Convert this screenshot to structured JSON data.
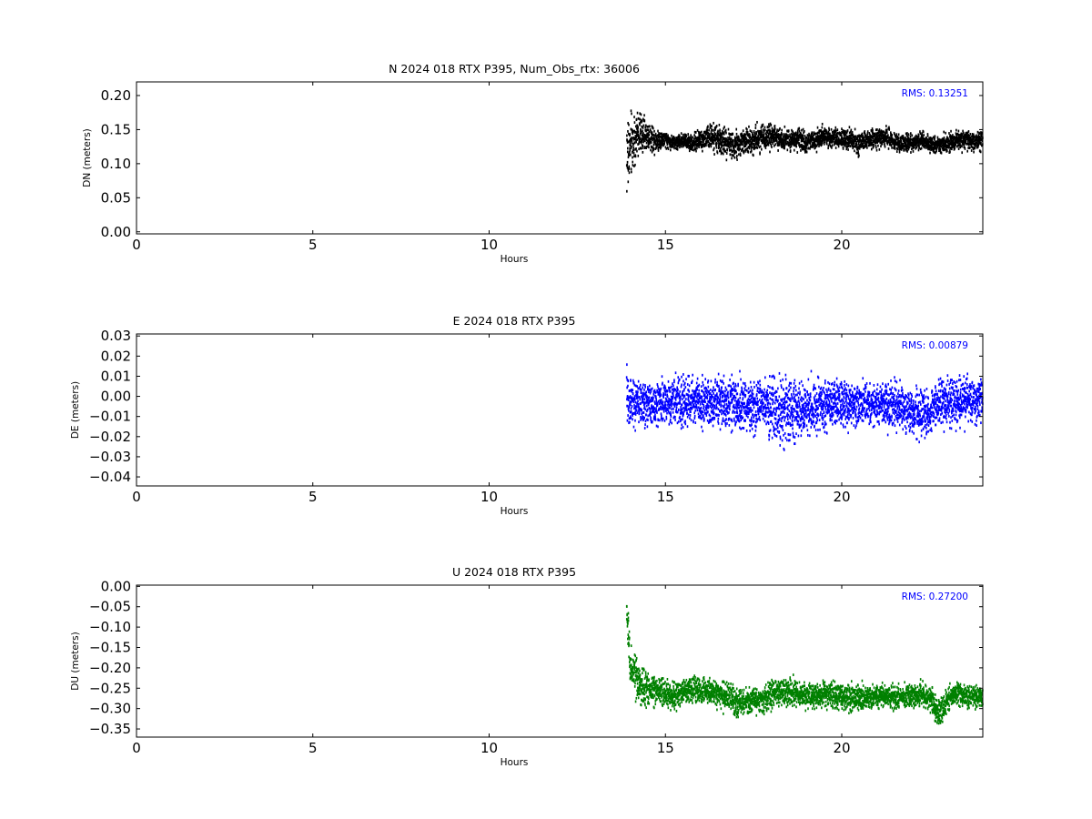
{
  "chart_data": [
    {
      "type": "scatter",
      "title": "N 2024 018 RTX  P395, Num_Obs_rtx: 36006",
      "xlabel": "Hours",
      "ylabel": "DN (meters)",
      "xlim": [
        0,
        24
      ],
      "ylim": [
        -0.003,
        0.22
      ],
      "xticks": [
        0,
        5,
        10,
        15,
        20
      ],
      "xtick_labels": [
        "0",
        "5",
        "10",
        "15",
        "20"
      ],
      "yticks": [
        0.0,
        0.05,
        0.1,
        0.15,
        0.2
      ],
      "ytick_labels": [
        "0.00",
        "0.05",
        "0.10",
        "0.15",
        "0.20"
      ],
      "annotation": "RMS:  0.13251",
      "annotation_color": "#0000ff",
      "color": "#000000",
      "grid": false,
      "series": [
        {
          "x": [
            13.9,
            14.0,
            14.25,
            14.5,
            14.75,
            15.0,
            15.25,
            15.5,
            15.75,
            16.0,
            16.25,
            16.5,
            16.75,
            17.0,
            17.25,
            17.5,
            17.75,
            18.0,
            18.25,
            18.5,
            18.75,
            19.0,
            19.25,
            19.5,
            19.75,
            20.0,
            20.25,
            20.5,
            20.75,
            21.0,
            21.25,
            21.5,
            21.75,
            22.0,
            22.25,
            22.5,
            22.75,
            23.0,
            23.25,
            23.5,
            23.75,
            24.0
          ],
          "y": [
            0.11,
            0.125,
            0.145,
            0.14,
            0.135,
            0.135,
            0.13,
            0.135,
            0.13,
            0.135,
            0.138,
            0.135,
            0.13,
            0.128,
            0.132,
            0.135,
            0.14,
            0.14,
            0.138,
            0.135,
            0.135,
            0.132,
            0.135,
            0.14,
            0.138,
            0.135,
            0.135,
            0.13,
            0.135,
            0.138,
            0.14,
            0.132,
            0.128,
            0.132,
            0.135,
            0.13,
            0.128,
            0.13,
            0.135,
            0.135,
            0.132,
            0.135
          ],
          "spread": [
            0.1,
            0.07,
            0.045,
            0.03,
            0.025,
            0.016,
            0.014,
            0.016,
            0.016,
            0.02,
            0.025,
            0.028,
            0.03,
            0.03,
            0.028,
            0.028,
            0.028,
            0.025,
            0.022,
            0.022,
            0.022,
            0.022,
            0.022,
            0.022,
            0.02,
            0.02,
            0.022,
            0.022,
            0.02,
            0.02,
            0.02,
            0.018,
            0.018,
            0.018,
            0.018,
            0.018,
            0.018,
            0.02,
            0.02,
            0.02,
            0.02,
            0.02
          ]
        }
      ]
    },
    {
      "type": "scatter",
      "title": "E 2024 018 RTX  P395",
      "xlabel": "Hours",
      "ylabel": "DE (meters)",
      "xlim": [
        0,
        24
      ],
      "ylim": [
        -0.0445,
        0.031
      ],
      "xticks": [
        0,
        5,
        10,
        15,
        20
      ],
      "xtick_labels": [
        "0",
        "5",
        "10",
        "15",
        "20"
      ],
      "yticks": [
        -0.04,
        -0.03,
        -0.02,
        -0.01,
        0.0,
        0.01,
        0.02,
        0.03
      ],
      "ytick_labels": [
        "−0.04",
        "−0.03",
        "−0.02",
        "−0.01",
        "0.00",
        "0.01",
        "0.02",
        "0.03"
      ],
      "annotation": "RMS:  0.00879",
      "annotation_color": "#0000ff",
      "color": "#0000ff",
      "grid": false,
      "series": [
        {
          "x": [
            13.9,
            14.0,
            14.25,
            14.5,
            14.75,
            15.0,
            15.25,
            15.5,
            15.75,
            16.0,
            16.25,
            16.5,
            16.75,
            17.0,
            17.25,
            17.5,
            17.75,
            18.0,
            18.25,
            18.5,
            18.75,
            19.0,
            19.25,
            19.5,
            19.75,
            20.0,
            20.25,
            20.5,
            20.75,
            21.0,
            21.25,
            21.5,
            21.75,
            22.0,
            22.25,
            22.5,
            22.75,
            23.0,
            23.25,
            23.5,
            23.75,
            24.0
          ],
          "y": [
            0.0,
            -0.004,
            -0.004,
            -0.004,
            -0.004,
            -0.003,
            -0.002,
            -0.003,
            -0.002,
            -0.003,
            -0.003,
            -0.003,
            -0.003,
            -0.004,
            -0.004,
            -0.004,
            -0.004,
            -0.006,
            -0.008,
            -0.007,
            -0.006,
            -0.006,
            -0.005,
            -0.005,
            -0.004,
            -0.004,
            -0.004,
            -0.004,
            -0.004,
            -0.004,
            -0.004,
            -0.005,
            -0.006,
            -0.008,
            -0.008,
            -0.009,
            -0.003,
            -0.003,
            -0.003,
            -0.003,
            -0.002,
            -0.002
          ],
          "spread": [
            0.026,
            0.02,
            0.016,
            0.016,
            0.016,
            0.015,
            0.015,
            0.02,
            0.016,
            0.016,
            0.016,
            0.016,
            0.018,
            0.018,
            0.018,
            0.018,
            0.018,
            0.022,
            0.024,
            0.022,
            0.02,
            0.018,
            0.02,
            0.018,
            0.016,
            0.015,
            0.015,
            0.015,
            0.015,
            0.015,
            0.016,
            0.016,
            0.016,
            0.016,
            0.016,
            0.016,
            0.016,
            0.016,
            0.018,
            0.016,
            0.016,
            0.016
          ]
        }
      ]
    },
    {
      "type": "scatter",
      "title": "U 2024 018 RTX  P395",
      "xlabel": "Hours",
      "ylabel": "DU (meters)",
      "xlim": [
        0,
        24
      ],
      "ylim": [
        -0.37,
        0.003
      ],
      "xticks": [
        0,
        5,
        10,
        15,
        20
      ],
      "xtick_labels": [
        "0",
        "5",
        "10",
        "15",
        "20"
      ],
      "yticks": [
        -0.35,
        -0.3,
        -0.25,
        -0.2,
        -0.15,
        -0.1,
        -0.05,
        0.0
      ],
      "ytick_labels": [
        "−0.35",
        "−0.30",
        "−0.25",
        "−0.20",
        "−0.15",
        "−0.10",
        "−0.05",
        "0.00"
      ],
      "annotation": "RMS:  0.27200",
      "annotation_color": "#0000ff",
      "color": "#008000",
      "grid": false,
      "series": [
        {
          "x": [
            13.9,
            14.0,
            14.25,
            14.5,
            14.75,
            15.0,
            15.25,
            15.5,
            15.75,
            16.0,
            16.25,
            16.5,
            16.75,
            17.0,
            17.25,
            17.5,
            17.75,
            18.0,
            18.25,
            18.5,
            18.75,
            19.0,
            19.25,
            19.5,
            19.75,
            20.0,
            20.25,
            20.5,
            20.75,
            21.0,
            21.25,
            21.5,
            21.75,
            22.0,
            22.25,
            22.5,
            22.75,
            23.0,
            23.25,
            23.5,
            23.75,
            24.0
          ],
          "y": [
            -0.06,
            -0.19,
            -0.245,
            -0.25,
            -0.255,
            -0.26,
            -0.27,
            -0.26,
            -0.25,
            -0.255,
            -0.26,
            -0.265,
            -0.27,
            -0.285,
            -0.285,
            -0.28,
            -0.28,
            -0.265,
            -0.255,
            -0.265,
            -0.26,
            -0.27,
            -0.27,
            -0.265,
            -0.265,
            -0.27,
            -0.275,
            -0.27,
            -0.275,
            -0.27,
            -0.27,
            -0.275,
            -0.27,
            -0.27,
            -0.265,
            -0.275,
            -0.31,
            -0.28,
            -0.265,
            -0.27,
            -0.265,
            -0.275
          ],
          "spread": [
            0.07,
            0.08,
            0.07,
            0.06,
            0.05,
            0.05,
            0.045,
            0.04,
            0.045,
            0.045,
            0.045,
            0.045,
            0.05,
            0.05,
            0.045,
            0.045,
            0.045,
            0.05,
            0.05,
            0.05,
            0.045,
            0.045,
            0.045,
            0.045,
            0.045,
            0.045,
            0.045,
            0.045,
            0.04,
            0.04,
            0.04,
            0.04,
            0.04,
            0.04,
            0.04,
            0.04,
            0.05,
            0.045,
            0.04,
            0.04,
            0.04,
            0.04
          ]
        }
      ]
    }
  ]
}
